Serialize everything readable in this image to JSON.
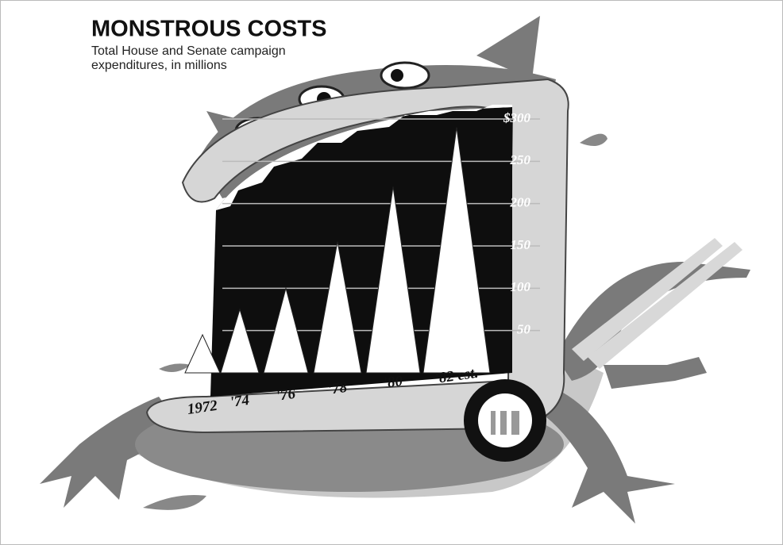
{
  "chart_data": {
    "type": "bar",
    "title": "MONSTROUS COSTS",
    "subtitle": "Total House and Senate campaign expenditures, in millions",
    "categories": [
      "1972",
      "'74",
      "'76",
      "'78",
      "'80",
      "'82 est."
    ],
    "values": [
      45,
      75,
      100,
      155,
      220,
      290
    ],
    "color": "#ffffff",
    "ylim": [
      0,
      300
    ],
    "yticks": [
      50,
      100,
      150,
      200,
      250,
      {
        "value": 300,
        "label": "$300"
      }
    ],
    "grid": true
  }
}
